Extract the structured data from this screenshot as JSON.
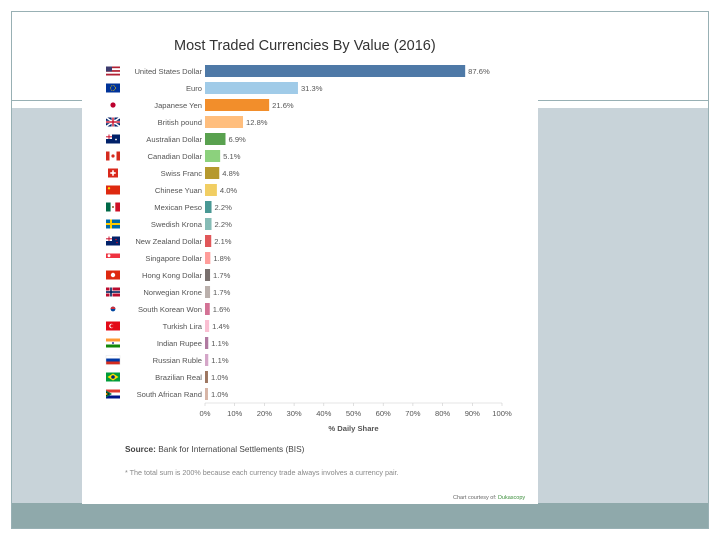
{
  "chart_data": {
    "type": "bar",
    "orientation": "horizontal",
    "title": "Most Traded Currencies By Value (2016)",
    "xlabel": "% Daily Share",
    "ylabel": "",
    "xlim": [
      0,
      100
    ],
    "x_ticks": [
      "0%",
      "10%",
      "20%",
      "30%",
      "40%",
      "50%",
      "60%",
      "70%",
      "80%",
      "90%",
      "100%"
    ],
    "grid": false,
    "categories": [
      "United States Dollar",
      "Euro",
      "Japanese Yen",
      "British pound",
      "Australian Dollar",
      "Canadian Dollar",
      "Swiss Franc",
      "Chinese Yuan",
      "Mexican Peso",
      "Swedish Krona",
      "New Zealand Dollar",
      "Singapore Dollar",
      "Hong Kong Dollar",
      "Norwegian Krone",
      "South Korean Won",
      "Turkish Lira",
      "Indian Rupee",
      "Russian Ruble",
      "Brazilian Real",
      "South African Rand"
    ],
    "values": [
      87.6,
      31.3,
      21.6,
      12.8,
      6.9,
      5.1,
      4.8,
      4.0,
      2.2,
      2.2,
      2.1,
      1.8,
      1.7,
      1.7,
      1.6,
      1.4,
      1.1,
      1.1,
      1.0,
      1.0
    ],
    "value_labels": [
      "87.6%",
      "31.3%",
      "21.6%",
      "12.8%",
      "6.9%",
      "5.1%",
      "4.8%",
      "4.0%",
      "2.2%",
      "2.2%",
      "2.1%",
      "1.8%",
      "1.7%",
      "1.7%",
      "1.6%",
      "1.4%",
      "1.1%",
      "1.1%",
      "1.0%",
      "1.0%"
    ],
    "bar_colors": [
      "#4e79a7",
      "#a0cbe8",
      "#f28e2b",
      "#ffbe7d",
      "#59a14f",
      "#8cd17d",
      "#b6992d",
      "#f1ce63",
      "#499894",
      "#86bcb6",
      "#e15759",
      "#ff9d9a",
      "#79706e",
      "#bab0ac",
      "#d37295",
      "#fabfd2",
      "#b07aa1",
      "#d4a6c8",
      "#9d7660",
      "#d7b5a6"
    ],
    "flags": [
      "us-flag",
      "eu-flag",
      "jp-flag",
      "gb-flag",
      "au-flag",
      "ca-flag",
      "ch-flag",
      "cn-flag",
      "mx-flag",
      "se-flag",
      "nz-flag",
      "sg-flag",
      "hk-flag",
      "no-flag",
      "kr-flag",
      "tr-flag",
      "in-flag",
      "ru-flag",
      "br-flag",
      "za-flag"
    ]
  },
  "source_label": "Source:",
  "source_text": "Bank for International Settlements (BIS)",
  "note": "* The total sum is 200% because each currency trade always involves a currency pair.",
  "credit_prefix": "Chart courtesy of:",
  "credit_link": "Dukascopy"
}
